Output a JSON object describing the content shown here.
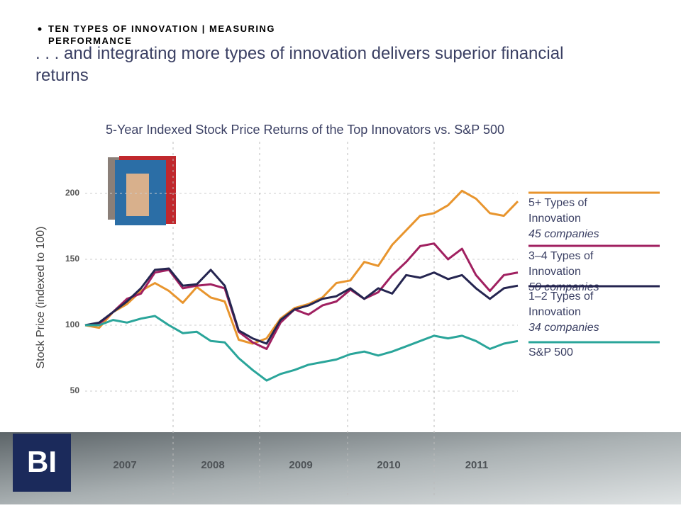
{
  "header": {
    "section": "TEN TYPES OF INNOVATION | MEASURING PERFORMANCE",
    "title": ". . . and integrating more types of innovation delivers superior financial returns"
  },
  "chart_data": {
    "type": "line",
    "title": "5-Year Indexed Stock Price Returns of the Top Innovators vs. S&P 500",
    "y_label": "Stock Price (indexed to 100)",
    "x_labels": [
      "2007",
      "2008",
      "2009",
      "2010",
      "2011"
    ],
    "ylim": [
      50,
      200
    ],
    "yticks": [
      50,
      100,
      150,
      200
    ],
    "grid": true,
    "series": [
      {
        "name": "5+ Types of Innovation",
        "note": "45 companies",
        "color": "#e8952e",
        "values": [
          100,
          98,
          110,
          116,
          126,
          132,
          126,
          117,
          129,
          121,
          118,
          89,
          86,
          90,
          105,
          113,
          116,
          121,
          132,
          134,
          148,
          145,
          161,
          172,
          183,
          185,
          191,
          202,
          196,
          185,
          183,
          194
        ]
      },
      {
        "name": "3–4 Types of Innovation",
        "note": "50 companies",
        "color": "#a02060",
        "values": [
          100,
          101,
          110,
          120,
          124,
          140,
          142,
          128,
          130,
          131,
          128,
          95,
          87,
          82,
          102,
          112,
          108,
          115,
          118,
          127,
          120,
          125,
          138,
          148,
          160,
          162,
          150,
          158,
          138,
          126,
          138,
          140
        ]
      },
      {
        "name": "1–2 Types of Innovation",
        "note": "34 companies",
        "color": "#252550",
        "values": [
          100,
          102,
          110,
          118,
          128,
          142,
          143,
          130,
          131,
          142,
          130,
          96,
          90,
          86,
          104,
          112,
          115,
          120,
          122,
          128,
          120,
          128,
          124,
          138,
          136,
          140,
          135,
          138,
          128,
          120,
          128,
          130
        ]
      },
      {
        "name": "S&P 500",
        "color": "#2aa59a",
        "values": [
          100,
          100,
          104,
          102,
          105,
          107,
          100,
          94,
          95,
          88,
          87,
          75,
          66,
          58,
          63,
          66,
          70,
          72,
          74,
          78,
          80,
          77,
          80,
          84,
          88,
          92,
          90,
          92,
          88,
          82,
          86,
          88
        ]
      }
    ]
  },
  "logo": "BI"
}
